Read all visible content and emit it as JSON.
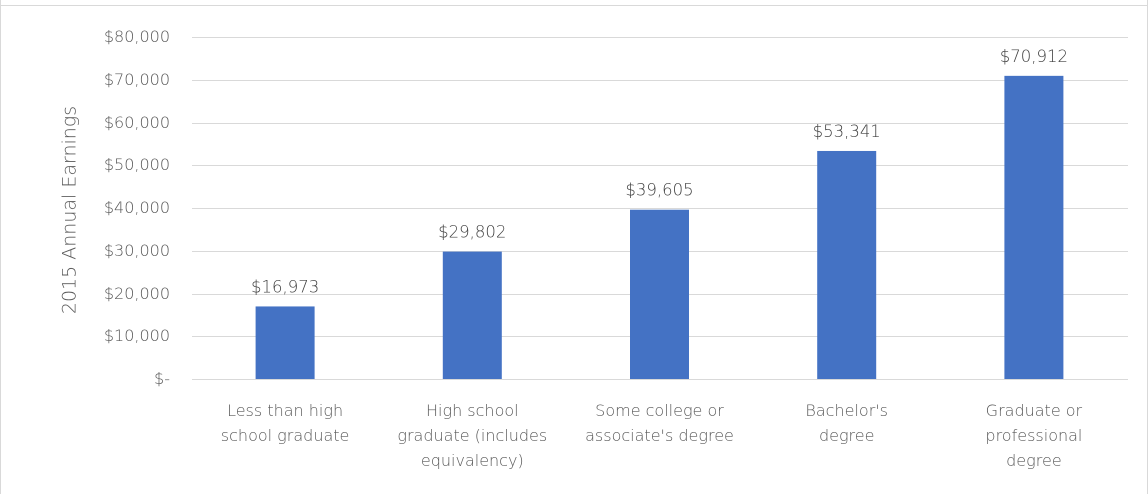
{
  "chart_data": {
    "type": "bar",
    "title": "",
    "ylabel": "2015 Annual Earnings",
    "xlabel": "",
    "categories": [
      [
        "Less than high",
        "school graduate"
      ],
      [
        "High school",
        "graduate (includes",
        "equivalency)"
      ],
      [
        "Some college or",
        "associate's degree"
      ],
      [
        "Bachelor's",
        "degree"
      ],
      [
        "Graduate or",
        "professional",
        "degree"
      ]
    ],
    "values": [
      16973,
      29802,
      39605,
      53341,
      70912
    ],
    "data_labels": [
      "$16,973",
      "$29,802",
      "$39,605",
      "$53,341",
      "$70,912"
    ],
    "ylim": [
      0,
      80000
    ],
    "yticks": [
      0,
      10000,
      20000,
      30000,
      40000,
      50000,
      60000,
      70000,
      80000
    ],
    "ytick_labels": [
      "$-",
      "$10,000",
      "$20,000",
      "$30,000",
      "$40,000",
      "$50,000",
      "$60,000",
      "$70,000",
      "$80,000"
    ],
    "grid": true,
    "bar_color": "#4472C4"
  }
}
